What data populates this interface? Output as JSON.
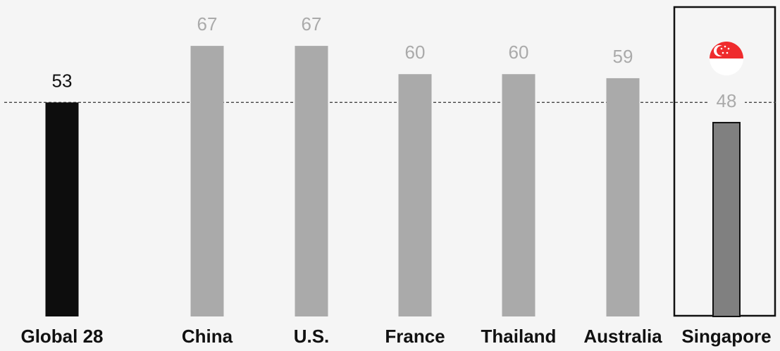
{
  "chart_data": {
    "type": "bar",
    "categories": [
      "Global 28",
      "China",
      "U.S.",
      "France",
      "Thailand",
      "Australia",
      "Singapore"
    ],
    "values": [
      53,
      67,
      67,
      60,
      60,
      59,
      48
    ],
    "reference_line": 53,
    "highlight": "Singapore",
    "baseline": "Global 28",
    "ylim": [
      0,
      80
    ],
    "grid": false,
    "legend": "none",
    "colors": {
      "baseline_bar": "#0d0d0d",
      "bar": "#aaaaaa",
      "highlight_bar": "#808080",
      "highlight_bar_stroke": "#111111",
      "baseline_label": "#111111",
      "value_label": "#aaaaaa",
      "reference_line": "#444444",
      "highlight_box": "#111111",
      "flag_red": "#ef2b2d",
      "flag_white": "#ffffff"
    },
    "icons": {
      "highlight_marker": "singapore-flag-icon"
    }
  }
}
